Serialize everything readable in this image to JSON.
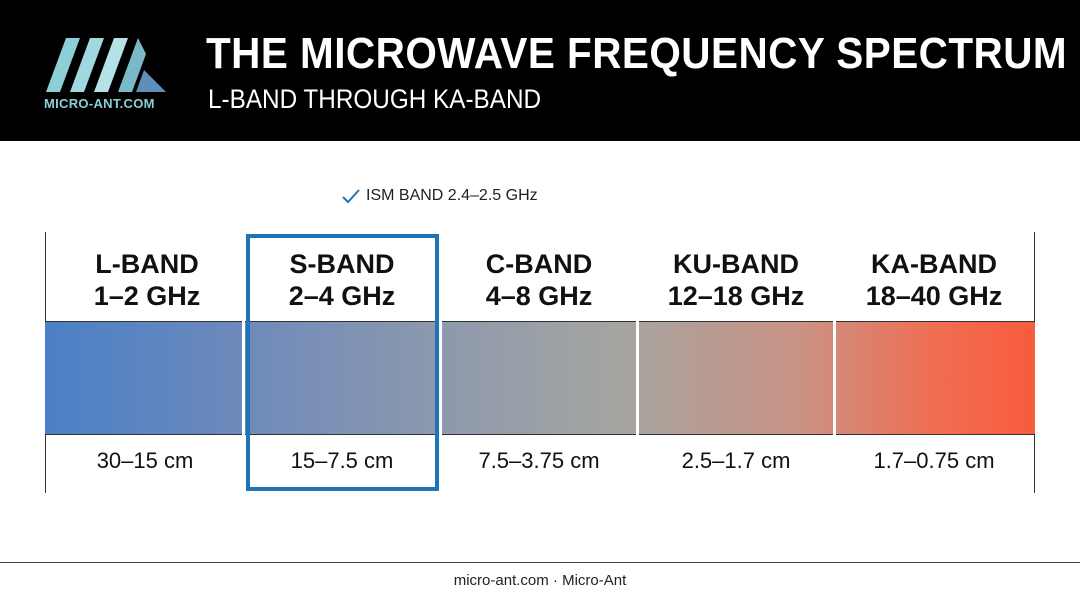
{
  "header": {
    "logo_text": "MICRO-ANT.COM",
    "title": "THE MICROWAVE FREQUENCY SPECTRUM",
    "subtitle": "L-BAND THROUGH KA-BAND"
  },
  "callout": {
    "label": "ISM BAND 2.4–2.5 GHz",
    "icon": "checkmark-icon",
    "color": "#1f74b8"
  },
  "bands": [
    {
      "name": "L-BAND",
      "range": "1–2 GHz",
      "wavelength": "30–15 cm"
    },
    {
      "name": "S-BAND",
      "range": "2–4 GHz",
      "wavelength": "15–7.5 cm"
    },
    {
      "name": "C-BAND",
      "range": "4–8 GHz",
      "wavelength": "7.5–3.75 cm"
    },
    {
      "name": "KU-BAND",
      "range": "12–18 GHz",
      "wavelength": "2.5–1.7 cm"
    },
    {
      "name": "KA-BAND",
      "range": "18–40 GHz",
      "wavelength": "1.7–0.75 cm"
    }
  ],
  "highlighted_band": "S-BAND",
  "colors": {
    "gradient_start": "#4a80c6",
    "gradient_end": "#f85b3d",
    "highlight": "#1f74b8",
    "logo": "#8dcfd6"
  },
  "footer": {
    "text": "micro-ant.com · Micro-Ant"
  }
}
